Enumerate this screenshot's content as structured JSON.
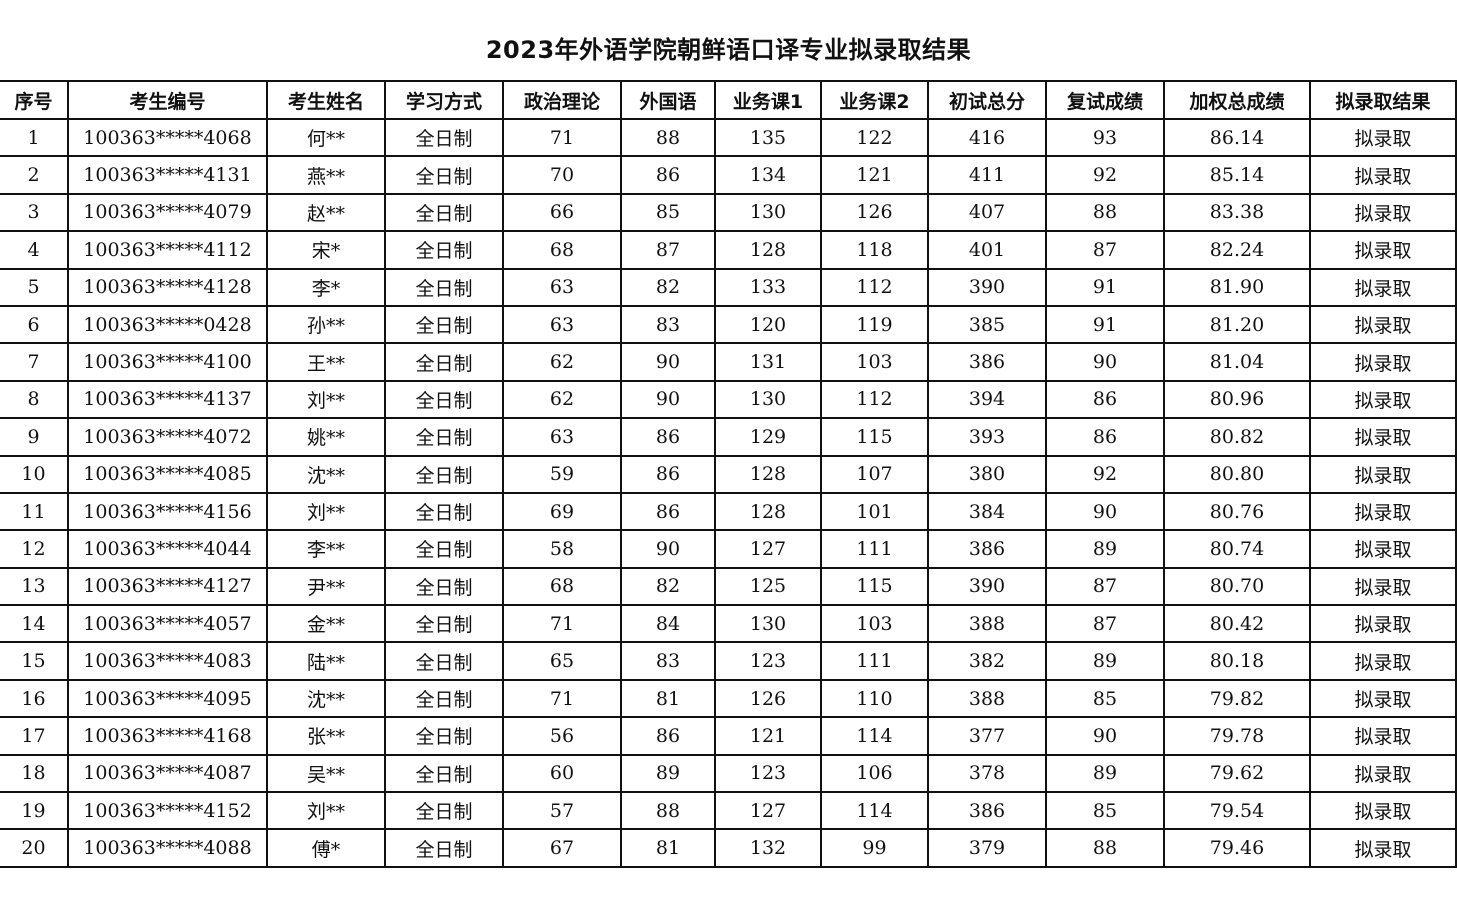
{
  "title": "2023年外语学院朝鲜语口译专业拟录取结果",
  "columns": [
    "序号",
    "考生编号",
    "考生姓名",
    "学习方式",
    "政治理论",
    "外国语",
    "业务课1",
    "业务课2",
    "初试总分",
    "复试成绩",
    "加权总成绩",
    "拟录取结果"
  ],
  "rows": [
    [
      "1",
      "100363*****4068",
      "何**",
      "全日制",
      "71",
      "88",
      "135",
      "122",
      "416",
      "93",
      "86.14",
      "拟录取"
    ],
    [
      "2",
      "100363*****4131",
      "燕**",
      "全日制",
      "70",
      "86",
      "134",
      "121",
      "411",
      "92",
      "85.14",
      "拟录取"
    ],
    [
      "3",
      "100363*****4079",
      "赵**",
      "全日制",
      "66",
      "85",
      "130",
      "126",
      "407",
      "88",
      "83.38",
      "拟录取"
    ],
    [
      "4",
      "100363*****4112",
      "宋*",
      "全日制",
      "68",
      "87",
      "128",
      "118",
      "401",
      "87",
      "82.24",
      "拟录取"
    ],
    [
      "5",
      "100363*****4128",
      "李*",
      "全日制",
      "63",
      "82",
      "133",
      "112",
      "390",
      "91",
      "81.90",
      "拟录取"
    ],
    [
      "6",
      "100363*****0428",
      "孙**",
      "全日制",
      "63",
      "83",
      "120",
      "119",
      "385",
      "91",
      "81.20",
      "拟录取"
    ],
    [
      "7",
      "100363*****4100",
      "王**",
      "全日制",
      "62",
      "90",
      "131",
      "103",
      "386",
      "90",
      "81.04",
      "拟录取"
    ],
    [
      "8",
      "100363*****4137",
      "刘**",
      "全日制",
      "62",
      "90",
      "130",
      "112",
      "394",
      "86",
      "80.96",
      "拟录取"
    ],
    [
      "9",
      "100363*****4072",
      "姚**",
      "全日制",
      "63",
      "86",
      "129",
      "115",
      "393",
      "86",
      "80.82",
      "拟录取"
    ],
    [
      "10",
      "100363*****4085",
      "沈**",
      "全日制",
      "59",
      "86",
      "128",
      "107",
      "380",
      "92",
      "80.80",
      "拟录取"
    ],
    [
      "11",
      "100363*****4156",
      "刘**",
      "全日制",
      "69",
      "86",
      "128",
      "101",
      "384",
      "90",
      "80.76",
      "拟录取"
    ],
    [
      "12",
      "100363*****4044",
      "李**",
      "全日制",
      "58",
      "90",
      "127",
      "111",
      "386",
      "89",
      "80.74",
      "拟录取"
    ],
    [
      "13",
      "100363*****4127",
      "尹**",
      "全日制",
      "68",
      "82",
      "125",
      "115",
      "390",
      "87",
      "80.70",
      "拟录取"
    ],
    [
      "14",
      "100363*****4057",
      "金**",
      "全日制",
      "71",
      "84",
      "130",
      "103",
      "388",
      "87",
      "80.42",
      "拟录取"
    ],
    [
      "15",
      "100363*****4083",
      "陆**",
      "全日制",
      "65",
      "83",
      "123",
      "111",
      "382",
      "89",
      "80.18",
      "拟录取"
    ],
    [
      "16",
      "100363*****4095",
      "沈**",
      "全日制",
      "71",
      "81",
      "126",
      "110",
      "388",
      "85",
      "79.82",
      "拟录取"
    ],
    [
      "17",
      "100363*****4168",
      "张**",
      "全日制",
      "56",
      "86",
      "121",
      "114",
      "377",
      "90",
      "79.78",
      "拟录取"
    ],
    [
      "18",
      "100363*****4087",
      "吴**",
      "全日制",
      "60",
      "89",
      "123",
      "106",
      "378",
      "89",
      "79.62",
      "拟录取"
    ],
    [
      "19",
      "100363*****4152",
      "刘**",
      "全日制",
      "57",
      "88",
      "127",
      "114",
      "386",
      "85",
      "79.54",
      "拟录取"
    ],
    [
      "20",
      "100363*****4088",
      "傅*",
      "全日制",
      "67",
      "81",
      "132",
      "99",
      "379",
      "88",
      "79.46",
      "拟录取"
    ]
  ]
}
